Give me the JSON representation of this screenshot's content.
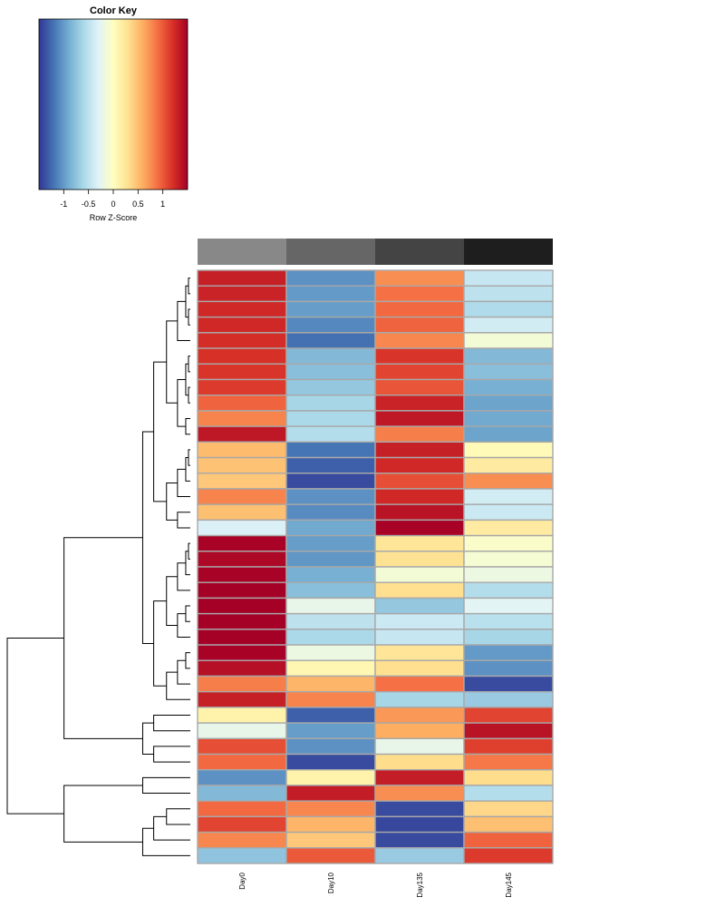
{
  "chart_data": {
    "type": "heatmap",
    "color_key": {
      "title": "Color Key",
      "xlabel": "Row Z-Score",
      "range": [
        -1.5,
        1.5
      ],
      "ticks": [
        -1,
        -0.5,
        0,
        0.5,
        1
      ],
      "tick_labels": [
        "-1",
        "-0.5",
        "0",
        "0.5",
        "1"
      ],
      "colors": [
        "#313695",
        "#4575b4",
        "#74add1",
        "#abd9e9",
        "#e0f3f8",
        "#ffffbf",
        "#fee090",
        "#fdae61",
        "#f46d43",
        "#d73027",
        "#a50026"
      ]
    },
    "columns": [
      "Day0",
      "Day10",
      "Day135",
      "Day145"
    ],
    "column_side_colors": [
      "#888888",
      "#666666",
      "#444444",
      "#1e1e1e"
    ],
    "values": [
      [
        1.3,
        -1.05,
        0.75,
        -0.45
      ],
      [
        1.28,
        -1.0,
        0.88,
        -0.5
      ],
      [
        1.25,
        -0.98,
        0.92,
        -0.58
      ],
      [
        1.25,
        -1.1,
        0.95,
        -0.38
      ],
      [
        1.22,
        -1.22,
        0.78,
        -0.12
      ],
      [
        1.2,
        -0.82,
        1.18,
        -0.82
      ],
      [
        1.18,
        -0.78,
        1.1,
        -0.78
      ],
      [
        1.15,
        -0.72,
        1.02,
        -0.88
      ],
      [
        0.95,
        -0.62,
        1.28,
        -0.95
      ],
      [
        0.8,
        -0.6,
        1.35,
        -0.92
      ],
      [
        1.35,
        -0.55,
        0.82,
        -0.95
      ],
      [
        0.52,
        -1.2,
        1.3,
        0.05
      ],
      [
        0.48,
        -1.3,
        1.25,
        0.2
      ],
      [
        0.45,
        -1.4,
        1.05,
        0.75
      ],
      [
        0.8,
        -1.05,
        1.25,
        -0.38
      ],
      [
        0.5,
        -1.08,
        1.38,
        -0.42
      ],
      [
        -0.32,
        -0.92,
        1.48,
        0.2
      ],
      [
        1.48,
        -0.98,
        0.25,
        -0.05
      ],
      [
        1.45,
        -1.02,
        0.28,
        -0.1
      ],
      [
        1.48,
        -0.88,
        -0.12,
        -0.18
      ],
      [
        1.5,
        -0.78,
        0.3,
        -0.55
      ],
      [
        1.5,
        -0.22,
        -0.72,
        -0.28
      ],
      [
        1.52,
        -0.5,
        -0.42,
        -0.52
      ],
      [
        1.52,
        -0.6,
        -0.45,
        -0.62
      ],
      [
        1.48,
        -0.18,
        0.25,
        -1.0
      ],
      [
        1.4,
        0.08,
        0.3,
        -1.05
      ],
      [
        0.82,
        0.55,
        0.88,
        -1.4
      ],
      [
        1.3,
        0.8,
        -0.62,
        -0.7
      ],
      [
        0.12,
        -1.3,
        0.7,
        1.1
      ],
      [
        -0.22,
        -0.98,
        0.6,
        1.38
      ],
      [
        1.05,
        -1.05,
        -0.22,
        1.12
      ],
      [
        0.92,
        -1.4,
        0.32,
        0.85
      ],
      [
        -1.05,
        0.12,
        1.32,
        0.32
      ],
      [
        -0.82,
        1.32,
        0.75,
        -0.55
      ],
      [
        0.92,
        0.78,
        -1.4,
        0.35
      ],
      [
        1.1,
        0.55,
        -1.42,
        0.5
      ],
      [
        0.78,
        0.45,
        -1.4,
        0.95
      ],
      [
        -0.75,
        1.0,
        -0.7,
        1.15
      ]
    ]
  }
}
